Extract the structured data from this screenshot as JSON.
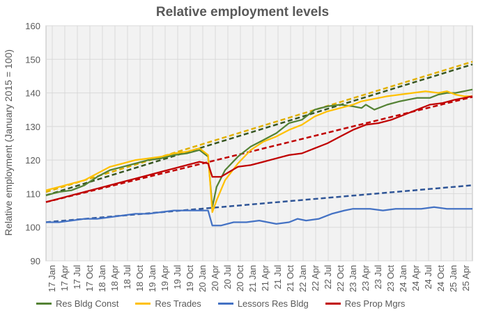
{
  "chart_data": {
    "type": "line",
    "title": "Relative employment levels",
    "ylabel": "Relative employment  (January 2015 = 100)",
    "xlabel": "",
    "ylim": [
      90,
      160
    ],
    "yticks": [
      90,
      100,
      110,
      120,
      130,
      140,
      150,
      160
    ],
    "grid": true,
    "legend_position": "bottom",
    "x_ticks": [
      "17 Jan",
      "17 Apr",
      "17 Jul",
      "17 Oct",
      "18 Jan",
      "18 Apr",
      "18 Jul",
      "18 Oct",
      "19 Jan",
      "19 Apr",
      "19 Jul",
      "19 Oct",
      "20 Jan",
      "20 Apr",
      "20 Jul",
      "20 Oct",
      "21 Jan",
      "21 Apr",
      "21 Jul",
      "21 Oct",
      "22 Jan",
      "22 Apr",
      "22 Jul",
      "22 Oct",
      "23 Jan",
      "23 Apr",
      "23 Jul",
      "23 Oct",
      "24 Jan",
      "24 Apr",
      "24 Jul",
      "24 Oct",
      "25 Jan",
      "25 Apr"
    ],
    "series": [
      {
        "name": "Res Bldg Const",
        "color": "#548235",
        "trend_color": "#375623",
        "values": [
          [
            0,
            109.5
          ],
          [
            3,
            110.5
          ],
          [
            6,
            111
          ],
          [
            9,
            112.5
          ],
          [
            12,
            115
          ],
          [
            15,
            117
          ],
          [
            18,
            118
          ],
          [
            21,
            119
          ],
          [
            24,
            120
          ],
          [
            27,
            120.5
          ],
          [
            30,
            121.5
          ],
          [
            33,
            122
          ],
          [
            36,
            123
          ],
          [
            38,
            121
          ],
          [
            39,
            106
          ],
          [
            40,
            112
          ],
          [
            42,
            117
          ],
          [
            45,
            121
          ],
          [
            48,
            124
          ],
          [
            51,
            126
          ],
          [
            54,
            128
          ],
          [
            57,
            131
          ],
          [
            60,
            132
          ],
          [
            63,
            135
          ],
          [
            66,
            136
          ],
          [
            69,
            136.5
          ],
          [
            72,
            136
          ],
          [
            74,
            135.5
          ],
          [
            75,
            136.5
          ],
          [
            77,
            135
          ],
          [
            80,
            136.5
          ],
          [
            83,
            137.5
          ],
          [
            85,
            138
          ],
          [
            87,
            138.5
          ],
          [
            90,
            138.5
          ],
          [
            92,
            139.5
          ],
          [
            94,
            140
          ],
          [
            96,
            140
          ],
          [
            98,
            140.5
          ],
          [
            100,
            141
          ]
        ],
        "trend": [
          [
            0,
            109.5
          ],
          [
            100,
            148.5
          ]
        ]
      },
      {
        "name": "Res Trades",
        "color": "#ffc000",
        "trend_color": "#e0b000",
        "values": [
          [
            0,
            111
          ],
          [
            3,
            112
          ],
          [
            6,
            113
          ],
          [
            9,
            114
          ],
          [
            12,
            116
          ],
          [
            15,
            118
          ],
          [
            18,
            119
          ],
          [
            21,
            120
          ],
          [
            24,
            120.5
          ],
          [
            27,
            121
          ],
          [
            30,
            122
          ],
          [
            33,
            122.5
          ],
          [
            36,
            123.5
          ],
          [
            38,
            121.5
          ],
          [
            39,
            104.5
          ],
          [
            40,
            108
          ],
          [
            42,
            114
          ],
          [
            45,
            119
          ],
          [
            48,
            123
          ],
          [
            51,
            125.5
          ],
          [
            54,
            127
          ],
          [
            57,
            129
          ],
          [
            60,
            130.5
          ],
          [
            63,
            133
          ],
          [
            66,
            134.5
          ],
          [
            69,
            135.5
          ],
          [
            72,
            136.5
          ],
          [
            74,
            137.5
          ],
          [
            76,
            138
          ],
          [
            78,
            138.5
          ],
          [
            80,
            139
          ],
          [
            83,
            139.5
          ],
          [
            86,
            140
          ],
          [
            89,
            140.5
          ],
          [
            92,
            140
          ],
          [
            94,
            140.5
          ],
          [
            96,
            139.5
          ],
          [
            98,
            139
          ],
          [
            100,
            139
          ]
        ],
        "trend": [
          [
            0,
            110.5
          ],
          [
            100,
            149.3
          ]
        ]
      },
      {
        "name": "Lessors Res Bldg",
        "color": "#4472c4",
        "trend_color": "#2f5597",
        "values": [
          [
            0,
            101.5
          ],
          [
            3,
            101.5
          ],
          [
            6,
            102
          ],
          [
            9,
            102.5
          ],
          [
            12,
            102.5
          ],
          [
            15,
            103
          ],
          [
            18,
            103.5
          ],
          [
            21,
            104
          ],
          [
            24,
            104
          ],
          [
            27,
            104.5
          ],
          [
            30,
            105
          ],
          [
            33,
            105
          ],
          [
            36,
            105
          ],
          [
            38,
            105
          ],
          [
            39,
            100.5
          ],
          [
            41,
            100.5
          ],
          [
            44,
            101.5
          ],
          [
            47,
            101.5
          ],
          [
            50,
            102
          ],
          [
            52,
            101.5
          ],
          [
            54,
            101
          ],
          [
            57,
            101.5
          ],
          [
            59,
            102.5
          ],
          [
            61,
            102
          ],
          [
            64,
            102.5
          ],
          [
            67,
            104
          ],
          [
            70,
            105
          ],
          [
            72,
            105.5
          ],
          [
            74,
            105.5
          ],
          [
            76,
            105.5
          ],
          [
            79,
            105
          ],
          [
            82,
            105.5
          ],
          [
            85,
            105.5
          ],
          [
            88,
            105.5
          ],
          [
            91,
            106
          ],
          [
            94,
            105.5
          ],
          [
            97,
            105.5
          ],
          [
            100,
            105.5
          ]
        ],
        "trend": [
          [
            0,
            101.5
          ],
          [
            100,
            112.5
          ]
        ]
      },
      {
        "name": "Res Prop Mgrs",
        "color": "#c00000",
        "trend_color": "#c00000",
        "values": [
          [
            0,
            107.5
          ],
          [
            3,
            108.5
          ],
          [
            6,
            109.5
          ],
          [
            9,
            110.5
          ],
          [
            12,
            111.5
          ],
          [
            15,
            112.5
          ],
          [
            18,
            113.5
          ],
          [
            21,
            114.5
          ],
          [
            24,
            115.5
          ],
          [
            27,
            116.5
          ],
          [
            30,
            117.5
          ],
          [
            33,
            118.5
          ],
          [
            36,
            119.5
          ],
          [
            38,
            119
          ],
          [
            39,
            115
          ],
          [
            41,
            115
          ],
          [
            43,
            116.5
          ],
          [
            45,
            118
          ],
          [
            48,
            118.5
          ],
          [
            51,
            119.5
          ],
          [
            54,
            120.5
          ],
          [
            57,
            121.5
          ],
          [
            60,
            122
          ],
          [
            63,
            123.5
          ],
          [
            66,
            125
          ],
          [
            69,
            127
          ],
          [
            72,
            129
          ],
          [
            75,
            130.5
          ],
          [
            78,
            131
          ],
          [
            81,
            132
          ],
          [
            84,
            133.5
          ],
          [
            87,
            135
          ],
          [
            90,
            136.5
          ],
          [
            93,
            137
          ],
          [
            96,
            138
          ],
          [
            98,
            138.5
          ],
          [
            100,
            139
          ]
        ],
        "trend": [
          [
            0,
            107.5
          ],
          [
            100,
            138.8
          ]
        ]
      }
    ]
  }
}
